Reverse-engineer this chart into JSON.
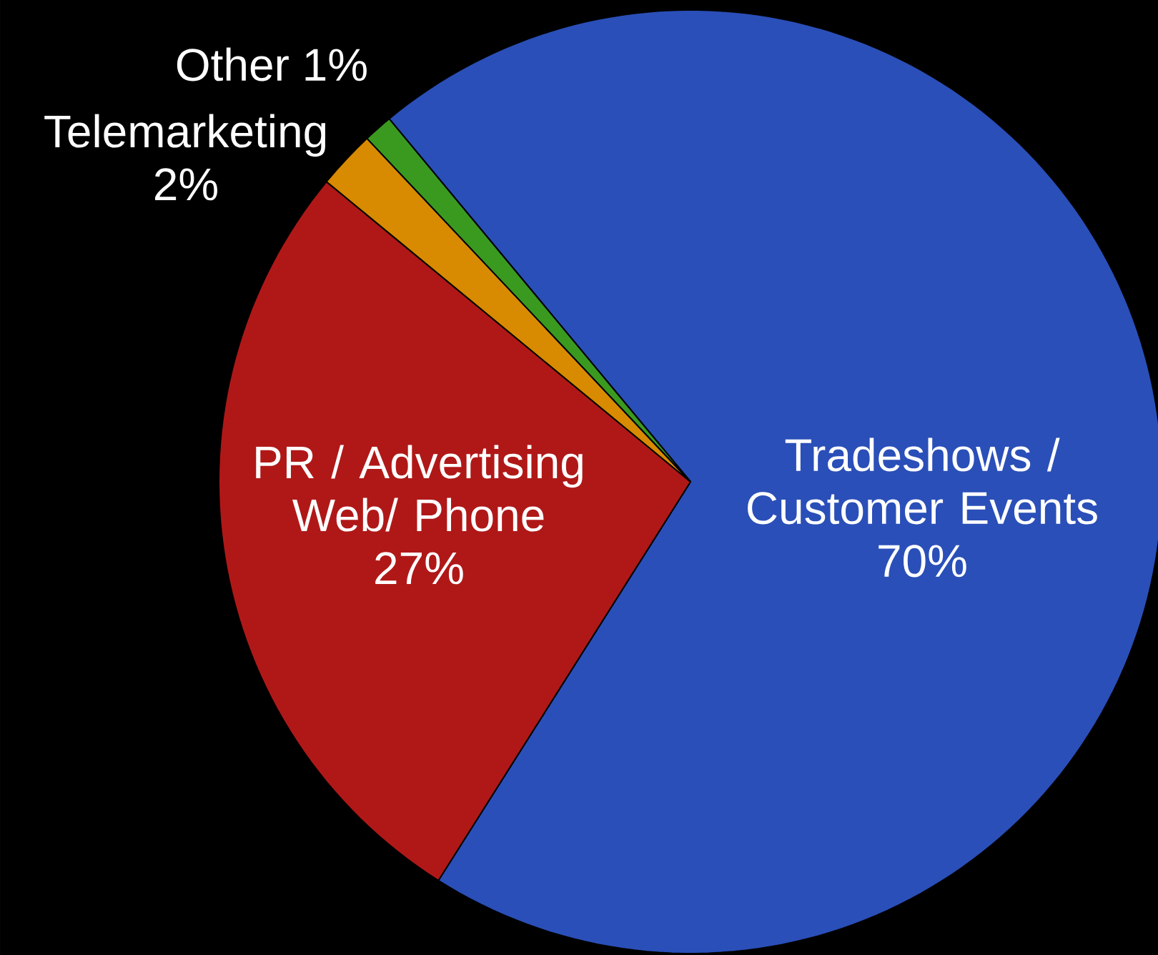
{
  "chart_data": {
    "type": "pie",
    "categories": [
      "Tradeshows / Customer Events",
      "PR / Advertising Web/ Phone",
      "Telemarketing",
      "Other"
    ],
    "values": [
      70,
      27,
      2,
      1
    ],
    "value_labels": [
      "70%",
      "27%",
      "2%",
      "1%"
    ],
    "colors": [
      "#2a4fb8",
      "#b01818",
      "#d88a00",
      "#3a9a20"
    ]
  }
}
